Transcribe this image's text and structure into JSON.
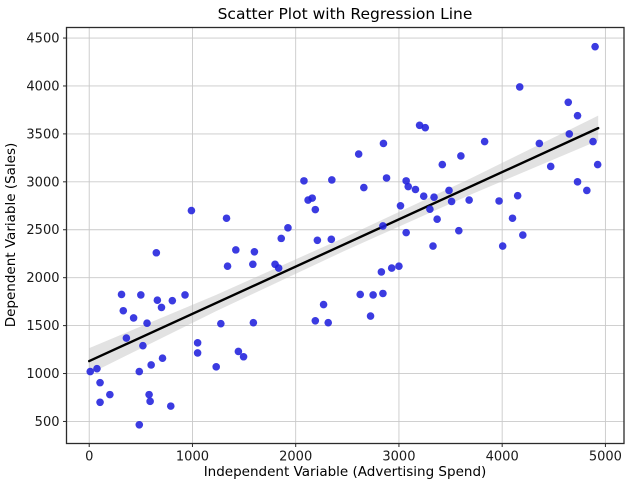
{
  "figure": {
    "title": "Scatter Plot with Regression Line",
    "xlabel": "Independent Variable (Advertising Spend)",
    "ylabel": "Dependent Variable (Sales)"
  },
  "chart_data": {
    "type": "scatter",
    "title": "Scatter Plot with Regression Line",
    "xlabel": "Independent Variable (Advertising Spend)",
    "ylabel": "Dependent Variable (Sales)",
    "xlim": [
      -220,
      5180
    ],
    "ylim": [
      270,
      4610
    ],
    "xticks": [
      0,
      1000,
      2000,
      3000,
      4000,
      5000
    ],
    "yticks": [
      500,
      1000,
      1500,
      2000,
      2500,
      3000,
      3500,
      4000,
      4500
    ],
    "grid": true,
    "legend": "none",
    "styles": {
      "background": "#ffffff",
      "grid_color": "#c9c9c9",
      "spine_color": "#2b2b2b",
      "tick_color": "#2b2b2b",
      "point_color": "#2020dd",
      "point_opacity": 0.88,
      "point_radius": 3.8,
      "line_color": "#000000",
      "line_width": 2.4,
      "band_color": "#bfbfbf",
      "band_opacity": 0.45
    },
    "series": [
      {
        "name": "observations",
        "type": "scatter",
        "points": [
          [
            10,
            1020
          ],
          [
            75,
            1050
          ],
          [
            105,
            905
          ],
          [
            105,
            700
          ],
          [
            200,
            780
          ],
          [
            313,
            1825
          ],
          [
            330,
            1655
          ],
          [
            360,
            1370
          ],
          [
            430,
            1580
          ],
          [
            485,
            465
          ],
          [
            485,
            1020
          ],
          [
            500,
            1820
          ],
          [
            520,
            1290
          ],
          [
            560,
            1525
          ],
          [
            580,
            780
          ],
          [
            590,
            710
          ],
          [
            600,
            1090
          ],
          [
            650,
            2260
          ],
          [
            660,
            1765
          ],
          [
            700,
            1690
          ],
          [
            710,
            1160
          ],
          [
            790,
            660
          ],
          [
            805,
            1760
          ],
          [
            928,
            1820
          ],
          [
            990,
            2700
          ],
          [
            1050,
            1320
          ],
          [
            1050,
            1215
          ],
          [
            1230,
            1070
          ],
          [
            1275,
            1520
          ],
          [
            1330,
            2620
          ],
          [
            1340,
            2120
          ],
          [
            1420,
            2290
          ],
          [
            1445,
            1230
          ],
          [
            1495,
            1175
          ],
          [
            1585,
            2140
          ],
          [
            1590,
            1530
          ],
          [
            1600,
            2270
          ],
          [
            1800,
            2140
          ],
          [
            1835,
            2100
          ],
          [
            1860,
            2410
          ],
          [
            1925,
            2520
          ],
          [
            2080,
            3010
          ],
          [
            2120,
            2810
          ],
          [
            2160,
            2830
          ],
          [
            2190,
            2710
          ],
          [
            2190,
            1550
          ],
          [
            2210,
            2390
          ],
          [
            2270,
            1720
          ],
          [
            2315,
            1530
          ],
          [
            2345,
            2400
          ],
          [
            2350,
            3020
          ],
          [
            2610,
            3290
          ],
          [
            2625,
            1825
          ],
          [
            2660,
            2940
          ],
          [
            2725,
            1600
          ],
          [
            2750,
            1820
          ],
          [
            2830,
            2060
          ],
          [
            2845,
            2540
          ],
          [
            2845,
            1835
          ],
          [
            2850,
            3400
          ],
          [
            2880,
            3040
          ],
          [
            2930,
            2100
          ],
          [
            3000,
            2120
          ],
          [
            3015,
            2750
          ],
          [
            3070,
            3010
          ],
          [
            3070,
            2470
          ],
          [
            3090,
            2950
          ],
          [
            3160,
            2920
          ],
          [
            3200,
            3590
          ],
          [
            3240,
            2850
          ],
          [
            3255,
            3565
          ],
          [
            3300,
            2715
          ],
          [
            3330,
            2330
          ],
          [
            3340,
            2840
          ],
          [
            3370,
            2610
          ],
          [
            3420,
            3180
          ],
          [
            3485,
            2910
          ],
          [
            3510,
            2795
          ],
          [
            3580,
            2490
          ],
          [
            3600,
            3270
          ],
          [
            3680,
            2810
          ],
          [
            3830,
            3420
          ],
          [
            3970,
            2800
          ],
          [
            4005,
            2330
          ],
          [
            4100,
            2620
          ],
          [
            4150,
            2855
          ],
          [
            4170,
            3990
          ],
          [
            4200,
            2445
          ],
          [
            4360,
            3400
          ],
          [
            4470,
            3160
          ],
          [
            4640,
            3830
          ],
          [
            4650,
            3500
          ],
          [
            4730,
            3690
          ],
          [
            4730,
            3000
          ],
          [
            4820,
            2910
          ],
          [
            4880,
            3420
          ],
          [
            4900,
            4410
          ],
          [
            4925,
            3180
          ]
        ]
      },
      {
        "name": "regression-line",
        "type": "line",
        "points": [
          [
            0,
            1130
          ],
          [
            4930,
            3560
          ]
        ]
      },
      {
        "name": "confidence-band",
        "type": "band",
        "x": [
          0,
          1230,
          2460,
          3700,
          4930
        ],
        "upper": [
          1265,
          1821,
          2413,
          3039,
          3690
        ],
        "lower": [
          995,
          1651,
          2273,
          2869,
          3430
        ]
      }
    ]
  }
}
